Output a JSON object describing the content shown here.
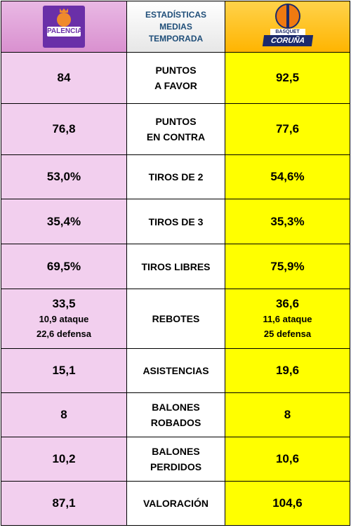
{
  "header": {
    "title_lines": [
      "ESTADÍSTICAS",
      "MEDIAS",
      "TEMPORADA"
    ],
    "left_logo": {
      "icon": "palencia-logo",
      "text": "PALENCIA",
      "color": "#6a2fa8"
    },
    "right_logo": {
      "icon": "basquet-coruna-logo",
      "text_top": "BASQUET",
      "text_bottom": "CORUÑA",
      "color": "#1c2a6b"
    }
  },
  "colors": {
    "left": "#f2cfee",
    "right": "#ffff00",
    "header_left": "#d990cf",
    "header_right": "#ffb400",
    "header_text": "#1f4e79"
  },
  "rows": [
    {
      "label": [
        "PUNTOS",
        "A FAVOR"
      ],
      "left": "84",
      "right": "92,5"
    },
    {
      "label": [
        "PUNTOS",
        "EN CONTRA"
      ],
      "left": "76,8",
      "right": "77,6"
    },
    {
      "label": [
        "TIROS DE 2"
      ],
      "left": "53,0%",
      "right": "54,6%"
    },
    {
      "label": [
        "TIROS DE 3"
      ],
      "left": "35,4%",
      "right": "35,3%"
    },
    {
      "label": [
        "TIROS LIBRES"
      ],
      "left": "69,5%",
      "right": "75,9%"
    },
    {
      "label": [
        "REBOTES"
      ],
      "left": "33,5",
      "right": "36,6",
      "left_sub": [
        "10,9 ataque",
        "22,6 defensa"
      ],
      "right_sub": [
        "11,6 ataque",
        "25 defensa"
      ]
    },
    {
      "label": [
        "ASISTENCIAS"
      ],
      "left": "15,1",
      "right": "19,6"
    },
    {
      "label": [
        "BALONES",
        "ROBADOS"
      ],
      "left": "8",
      "right": "8"
    },
    {
      "label": [
        "BALONES",
        "PERDIDOS"
      ],
      "left": "10,2",
      "right": "10,6"
    },
    {
      "label": [
        "VALORACIÓN"
      ],
      "left": "87,1",
      "right": "104,6"
    }
  ]
}
